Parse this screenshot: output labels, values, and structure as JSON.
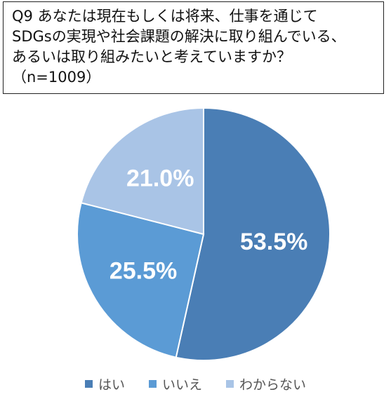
{
  "title": "Q9 あなたは現在もしくは将来、仕事を通じて\nSDGsの実現や社会課題の解決に取り組んでいる、\nあるいは取り組みたいと考えていますか？\n（n=1009）",
  "chart_data": {
    "type": "pie",
    "title": "Q9 あなたは現在もしくは将来、仕事を通じて SDGsの実現や社会課題の解決に取り組んでいる、あるいは取り組みたいと考えていますか？ （n=1009）",
    "categories": [
      "はい",
      "いいえ",
      "わからない"
    ],
    "values": [
      53.5,
      25.5,
      21.0
    ],
    "labels": [
      "53.5%",
      "25.5%",
      "21.0%"
    ],
    "colors": [
      "#4A7EB5",
      "#5B9BD5",
      "#A9C4E6"
    ],
    "start_angle": "12 o'clock",
    "direction": "clockwise",
    "legend_position": "bottom"
  }
}
